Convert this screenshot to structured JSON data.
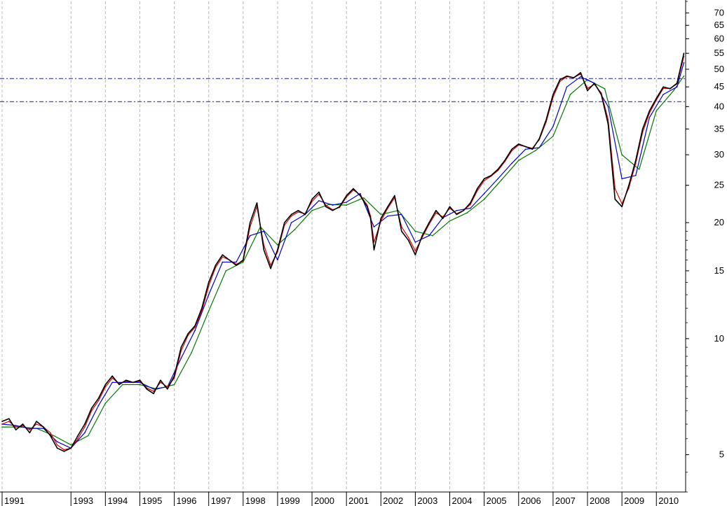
{
  "chart_data": {
    "type": "line",
    "title": "",
    "xlabel": "",
    "ylabel": "",
    "y_scale": "log",
    "grid": true,
    "xlim": [
      1991.0,
      2010.85
    ],
    "ylim": [
      4.0,
      75.0
    ],
    "y_ticks": [
      5,
      10,
      15,
      20,
      25,
      30,
      35,
      40,
      45,
      50,
      55,
      60,
      65,
      70
    ],
    "x_ticks": [
      {
        "year": 1991,
        "label": "1991"
      },
      {
        "year": 1993,
        "label": "1993"
      },
      {
        "year": 1994,
        "label": "1994"
      },
      {
        "year": 1995,
        "label": "1995"
      },
      {
        "year": 1996,
        "label": "1996"
      },
      {
        "year": 1997,
        "label": "1997"
      },
      {
        "year": 1998,
        "label": "1998"
      },
      {
        "year": 1999,
        "label": "1999"
      },
      {
        "year": 2000,
        "label": "2000"
      },
      {
        "year": 2001,
        "label": "2001"
      },
      {
        "year": 2002,
        "label": "2002"
      },
      {
        "year": 2003,
        "label": "2003"
      },
      {
        "year": 2004,
        "label": "2004"
      },
      {
        "year": 2005,
        "label": "2005"
      },
      {
        "year": 2006,
        "label": "2006"
      },
      {
        "year": 2007,
        "label": "2007"
      },
      {
        "year": 2008,
        "label": "2008"
      },
      {
        "year": 2009,
        "label": "2009"
      },
      {
        "year": 2010,
        "label": "2010"
      }
    ],
    "horizontal_lines": [
      {
        "value": 47.3,
        "color": "#1a1aa0",
        "style": "dash-dot"
      },
      {
        "value": 41.2,
        "color": "#1a1aa0",
        "style": "dash-dot"
      }
    ],
    "series": [
      {
        "color": "#000000",
        "role": "price",
        "x": [
          1991.0,
          1991.2,
          1991.4,
          1991.6,
          1991.8,
          1992.0,
          1992.2,
          1992.4,
          1992.6,
          1992.8,
          1993.0,
          1993.2,
          1993.4,
          1993.6,
          1993.8,
          1994.0,
          1994.2,
          1994.4,
          1994.6,
          1994.8,
          1995.0,
          1995.2,
          1995.4,
          1995.6,
          1995.8,
          1996.0,
          1996.2,
          1996.4,
          1996.6,
          1996.8,
          1997.0,
          1997.2,
          1997.4,
          1997.6,
          1997.8,
          1998.0,
          1998.2,
          1998.4,
          1998.6,
          1998.8,
          1999.0,
          1999.2,
          1999.4,
          1999.6,
          1999.8,
          2000.0,
          2000.2,
          2000.4,
          2000.6,
          2000.8,
          2001.0,
          2001.2,
          2001.4,
          2001.6,
          2001.7,
          2001.8,
          2002.0,
          2002.2,
          2002.4,
          2002.6,
          2002.8,
          2003.0,
          2003.2,
          2003.4,
          2003.6,
          2003.8,
          2004.0,
          2004.2,
          2004.4,
          2004.6,
          2004.8,
          2005.0,
          2005.2,
          2005.4,
          2005.6,
          2005.8,
          2006.0,
          2006.2,
          2006.4,
          2006.6,
          2006.8,
          2007.0,
          2007.2,
          2007.4,
          2007.6,
          2007.8,
          2008.0,
          2008.2,
          2008.4,
          2008.6,
          2008.8,
          2009.0,
          2009.2,
          2009.4,
          2009.6,
          2009.8,
          2010.0,
          2010.2,
          2010.4,
          2010.6,
          2010.8
        ],
        "values": [
          6.1,
          6.2,
          5.8,
          6.0,
          5.7,
          6.1,
          5.9,
          5.6,
          5.2,
          5.1,
          5.2,
          5.6,
          6.0,
          6.6,
          7.0,
          7.6,
          8.0,
          7.6,
          7.8,
          7.7,
          7.8,
          7.4,
          7.2,
          7.8,
          7.4,
          8.0,
          9.5,
          10.3,
          10.8,
          12.0,
          14.0,
          15.5,
          16.5,
          16.0,
          15.5,
          16.0,
          20.0,
          22.5,
          17.0,
          15.2,
          17.0,
          20.0,
          21.0,
          21.5,
          21.0,
          23.0,
          24.0,
          22.0,
          21.5,
          22.0,
          23.5,
          24.5,
          23.5,
          22.0,
          20.5,
          17.0,
          20.5,
          22.0,
          23.5,
          19.0,
          18.0,
          16.5,
          18.5,
          20.0,
          21.5,
          20.5,
          22.0,
          21.0,
          21.5,
          22.5,
          24.5,
          26.0,
          26.5,
          27.5,
          29.0,
          31.0,
          32.0,
          31.5,
          31.0,
          33.0,
          37.0,
          43.0,
          47.0,
          48.0,
          47.5,
          49.0,
          44.0,
          46.0,
          43.0,
          36.0,
          23.0,
          22.0,
          25.0,
          29.0,
          35.0,
          39.0,
          42.0,
          45.0,
          44.5,
          46.0,
          55.0
        ]
      },
      {
        "color": "#d80000",
        "role": "fast moving average",
        "x": [
          1991.0,
          1991.2,
          1991.4,
          1991.6,
          1991.8,
          1992.0,
          1992.2,
          1992.4,
          1992.6,
          1992.8,
          1993.0,
          1993.2,
          1993.4,
          1993.6,
          1993.8,
          1994.0,
          1994.2,
          1994.4,
          1994.6,
          1994.8,
          1995.0,
          1995.2,
          1995.4,
          1995.6,
          1995.8,
          1996.0,
          1996.2,
          1996.4,
          1996.6,
          1996.8,
          1997.0,
          1997.2,
          1997.4,
          1997.6,
          1997.8,
          1998.0,
          1998.2,
          1998.4,
          1998.6,
          1998.8,
          1999.0,
          1999.2,
          1999.4,
          1999.6,
          1999.8,
          2000.0,
          2000.2,
          2000.4,
          2000.6,
          2000.8,
          2001.0,
          2001.2,
          2001.4,
          2001.6,
          2001.7,
          2001.8,
          2002.0,
          2002.2,
          2002.4,
          2002.6,
          2002.8,
          2003.0,
          2003.2,
          2003.4,
          2003.6,
          2003.8,
          2004.0,
          2004.2,
          2004.4,
          2004.6,
          2004.8,
          2005.0,
          2005.2,
          2005.4,
          2005.6,
          2005.8,
          2006.0,
          2006.2,
          2006.4,
          2006.6,
          2006.8,
          2007.0,
          2007.2,
          2007.4,
          2007.6,
          2007.8,
          2008.0,
          2008.2,
          2008.4,
          2008.6,
          2008.8,
          2009.0,
          2009.2,
          2009.4,
          2009.6,
          2009.8,
          2010.0,
          2010.2,
          2010.4,
          2010.6,
          2010.8
        ],
        "values": [
          6.0,
          6.1,
          5.9,
          5.95,
          5.8,
          6.0,
          5.9,
          5.7,
          5.3,
          5.15,
          5.2,
          5.5,
          5.9,
          6.5,
          6.9,
          7.5,
          7.9,
          7.65,
          7.75,
          7.7,
          7.75,
          7.45,
          7.3,
          7.7,
          7.5,
          7.9,
          9.3,
          10.2,
          10.7,
          11.8,
          13.7,
          15.3,
          16.3,
          16.0,
          15.6,
          15.9,
          19.5,
          22.0,
          17.5,
          15.5,
          16.8,
          19.7,
          20.8,
          21.3,
          21.1,
          22.7,
          23.7,
          22.2,
          21.6,
          21.9,
          23.3,
          24.3,
          23.6,
          22.2,
          20.8,
          17.8,
          20.2,
          21.8,
          23.2,
          19.5,
          18.3,
          16.9,
          18.3,
          19.8,
          21.2,
          20.7,
          21.8,
          21.1,
          21.5,
          22.3,
          24.2,
          25.7,
          26.4,
          27.3,
          28.8,
          30.7,
          31.8,
          31.5,
          31.2,
          32.8,
          36.5,
          42.3,
          46.5,
          47.8,
          47.6,
          48.6,
          44.6,
          45.7,
          43.4,
          37.0,
          24.5,
          22.4,
          24.6,
          28.5,
          34.3,
          38.5,
          41.6,
          44.6,
          44.6,
          45.8,
          54.0
        ]
      },
      {
        "color": "#0000cc",
        "role": "medium moving average",
        "x": [
          1991.0,
          1991.4,
          1991.8,
          1992.2,
          1992.6,
          1993.0,
          1993.4,
          1993.8,
          1994.2,
          1994.6,
          1995.0,
          1995.4,
          1995.8,
          1996.2,
          1996.6,
          1997.0,
          1997.4,
          1997.8,
          1998.2,
          1998.6,
          1999.0,
          1999.4,
          1999.8,
          2000.2,
          2000.6,
          2001.0,
          2001.4,
          2001.8,
          2002.2,
          2002.6,
          2003.0,
          2003.4,
          2003.8,
          2004.2,
          2004.6,
          2005.0,
          2005.4,
          2005.8,
          2006.2,
          2006.6,
          2007.0,
          2007.4,
          2007.8,
          2008.2,
          2008.6,
          2009.0,
          2009.4,
          2009.8,
          2010.2,
          2010.6,
          2010.8
        ],
        "values": [
          6.0,
          5.95,
          5.85,
          5.85,
          5.4,
          5.2,
          5.7,
          6.7,
          7.7,
          7.7,
          7.7,
          7.4,
          7.5,
          8.9,
          10.5,
          13.0,
          15.8,
          15.8,
          18.5,
          19.0,
          16.0,
          20.0,
          21.0,
          22.8,
          22.2,
          22.6,
          23.8,
          19.5,
          20.8,
          21.0,
          17.8,
          18.5,
          20.6,
          21.5,
          21.8,
          23.8,
          26.0,
          28.5,
          31.0,
          31.3,
          35.5,
          45.0,
          47.8,
          46.0,
          40.0,
          26.0,
          26.5,
          37.5,
          43.0,
          45.0,
          52.0
        ]
      },
      {
        "color": "#007a00",
        "role": "slow moving average",
        "x": [
          1991.0,
          1991.5,
          1992.0,
          1992.5,
          1993.0,
          1993.5,
          1994.0,
          1994.5,
          1995.0,
          1995.5,
          1996.0,
          1996.5,
          1997.0,
          1997.5,
          1998.0,
          1998.5,
          1999.0,
          1999.5,
          2000.0,
          2000.5,
          2001.0,
          2001.5,
          2002.0,
          2002.5,
          2003.0,
          2003.5,
          2004.0,
          2004.5,
          2005.0,
          2005.5,
          2006.0,
          2006.5,
          2007.0,
          2007.5,
          2008.0,
          2008.5,
          2009.0,
          2009.5,
          2010.0,
          2010.5,
          2010.8
        ],
        "values": [
          5.9,
          5.9,
          5.85,
          5.6,
          5.3,
          5.6,
          6.8,
          7.6,
          7.6,
          7.4,
          7.6,
          9.2,
          11.8,
          15.0,
          15.8,
          19.5,
          17.5,
          19.2,
          21.5,
          22.3,
          22.2,
          23.2,
          21.0,
          21.5,
          19.0,
          18.5,
          20.2,
          21.2,
          23.0,
          25.8,
          29.0,
          30.8,
          33.5,
          43.0,
          47.0,
          44.5,
          30.0,
          27.5,
          39.0,
          44.0,
          48.0
        ]
      }
    ]
  }
}
